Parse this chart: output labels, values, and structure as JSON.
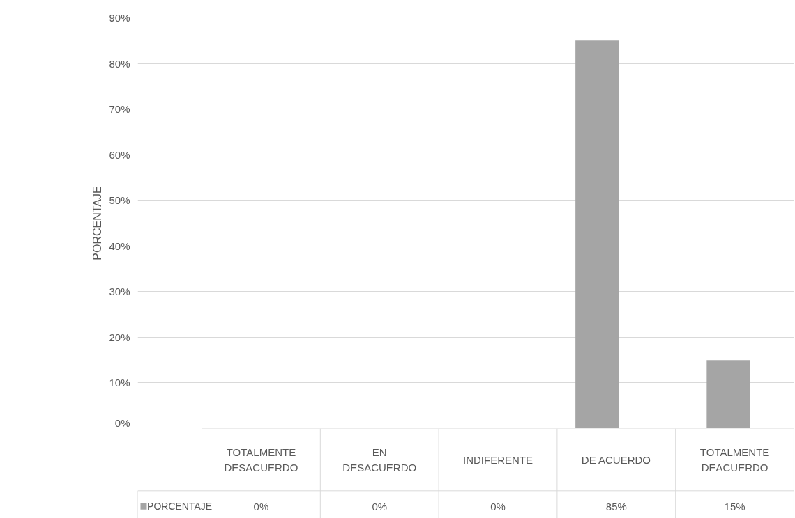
{
  "chart_data": {
    "type": "bar",
    "ylabel": "PORCENTAJE",
    "categories": [
      "TOTALMENTE DESACUERDO",
      "EN DESACUERDO",
      "INDIFERENTE",
      "DE ACUERDO",
      "TOTALMENTE DEACUERDO"
    ],
    "series": [
      {
        "name": "PORCENTAJE",
        "color": "#a5a5a5",
        "values": [
          0,
          0,
          0,
          85,
          15
        ],
        "value_labels": [
          "0%",
          "0%",
          "0%",
          "85%",
          "15%"
        ]
      }
    ],
    "ylim": [
      0,
      90
    ],
    "yticks": [
      {
        "value": 0,
        "label": "0%"
      },
      {
        "value": 10,
        "label": "10%"
      },
      {
        "value": 20,
        "label": "20%"
      },
      {
        "value": 30,
        "label": "30%"
      },
      {
        "value": 40,
        "label": "40%"
      },
      {
        "value": 50,
        "label": "50%"
      },
      {
        "value": 60,
        "label": "60%"
      },
      {
        "value": 70,
        "label": "70%"
      },
      {
        "value": 80,
        "label": "80%"
      },
      {
        "value": 90,
        "label": "90%"
      }
    ],
    "grid": "y",
    "legend": "bottom"
  }
}
